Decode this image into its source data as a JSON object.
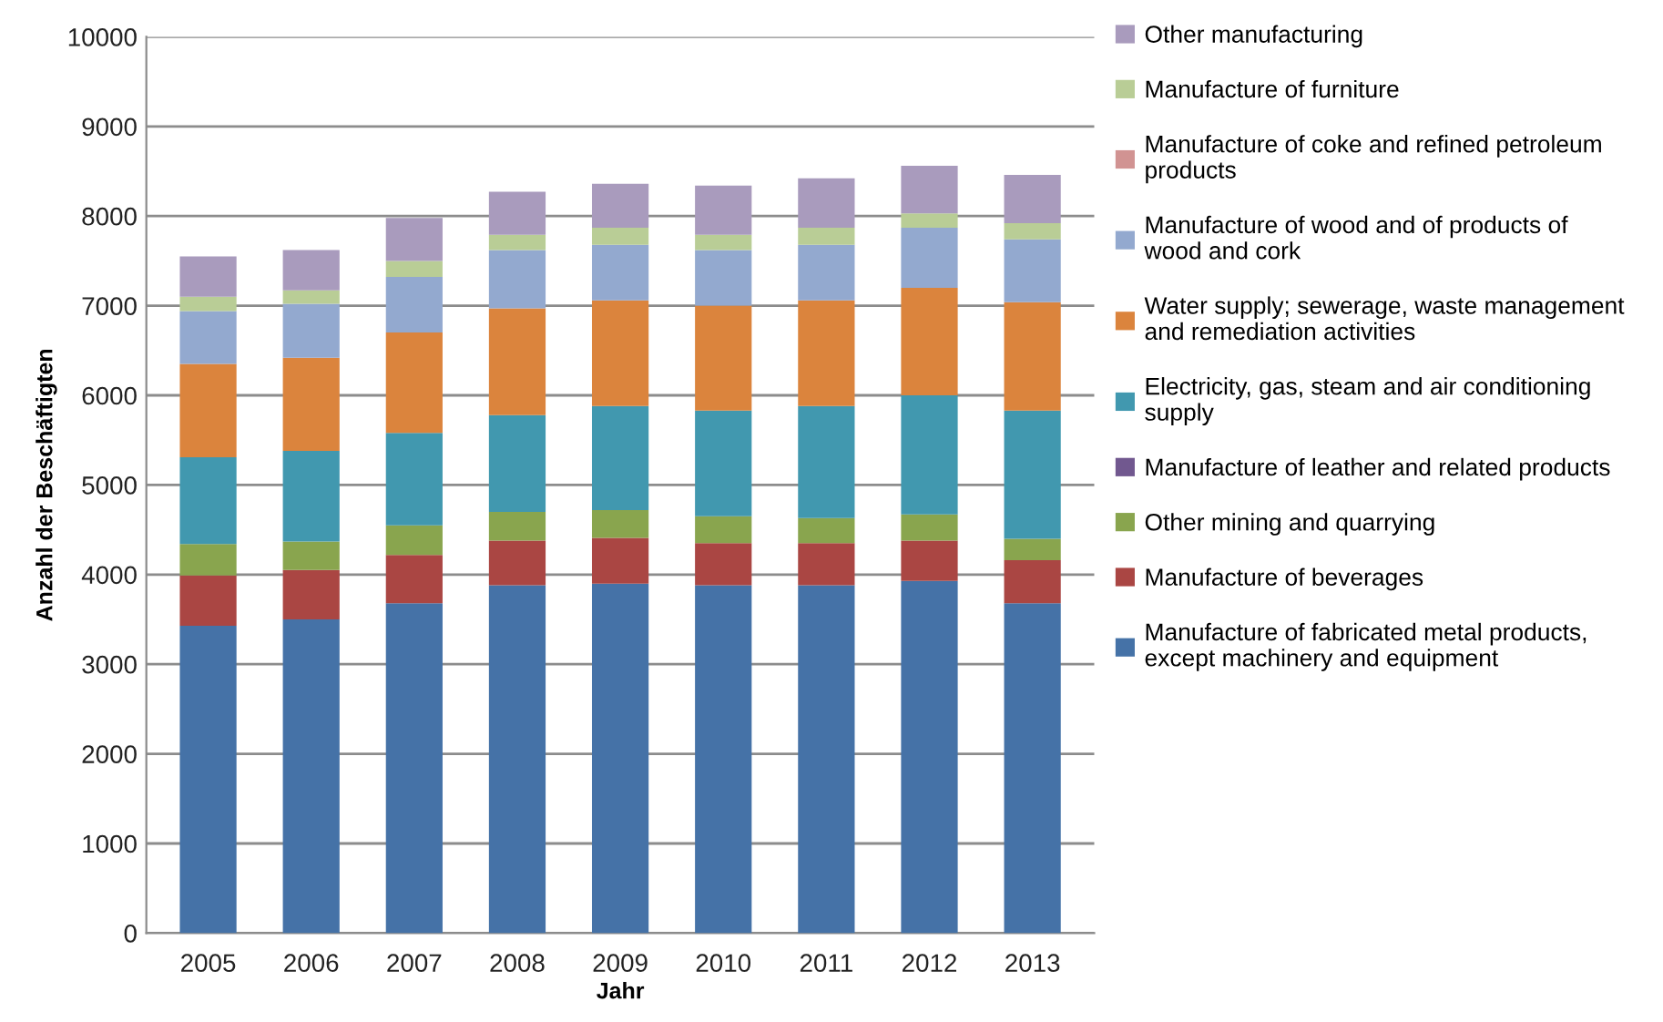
{
  "chart_data": {
    "type": "bar",
    "stacked": true,
    "xlabel": "Jahr",
    "ylabel": "Anzahl der Beschäftigten",
    "categories": [
      "2005",
      "2006",
      "2007",
      "2008",
      "2009",
      "2010",
      "2011",
      "2012",
      "2013"
    ],
    "series": [
      {
        "name": "Manufacture of fabricated metal products,\nexcept machinery and equipment",
        "color": "#4572a7",
        "values": [
          3430,
          3500,
          3680,
          3880,
          3900,
          3880,
          3880,
          3930,
          3680
        ]
      },
      {
        "name": "Manufacture of beverages",
        "color": "#aa4643",
        "values": [
          560,
          550,
          540,
          500,
          510,
          470,
          470,
          450,
          480
        ]
      },
      {
        "name": "Other mining and quarrying",
        "color": "#89a54e",
        "values": [
          350,
          320,
          330,
          320,
          310,
          300,
          280,
          290,
          240
        ]
      },
      {
        "name": "Manufacture of leather and related products",
        "color": "#71588f",
        "values": [
          0,
          0,
          0,
          0,
          0,
          0,
          0,
          0,
          0
        ]
      },
      {
        "name": "Electricity, gas, steam and air conditioning\nsupply",
        "color": "#4198af",
        "values": [
          970,
          1010,
          1030,
          1080,
          1160,
          1180,
          1250,
          1330,
          1430
        ]
      },
      {
        "name": "Water supply; sewerage, waste management\nand remediation activities",
        "color": "#db843d",
        "values": [
          1040,
          1040,
          1120,
          1190,
          1180,
          1170,
          1180,
          1200,
          1210
        ]
      },
      {
        "name": "Manufacture of wood and of products of\nwood and cork",
        "color": "#93a9cf",
        "values": [
          590,
          600,
          620,
          650,
          620,
          620,
          620,
          670,
          700
        ]
      },
      {
        "name": "Manufacture of coke and refined petroleum\nproducts",
        "color": "#d19392",
        "values": [
          0,
          0,
          0,
          0,
          0,
          0,
          0,
          0,
          0
        ]
      },
      {
        "name": "Manufacture of furniture",
        "color": "#b9cd96",
        "values": [
          160,
          150,
          180,
          170,
          190,
          170,
          190,
          160,
          180
        ]
      },
      {
        "name": "Other manufacturing",
        "color": "#a99bbd",
        "values": [
          450,
          450,
          480,
          480,
          490,
          550,
          550,
          530,
          540
        ]
      }
    ],
    "ylim": [
      0,
      10000
    ],
    "yticks": [
      0,
      1000,
      2000,
      3000,
      4000,
      5000,
      6000,
      7000,
      8000,
      9000,
      10000
    ],
    "grid": "y",
    "legend": "right"
  }
}
